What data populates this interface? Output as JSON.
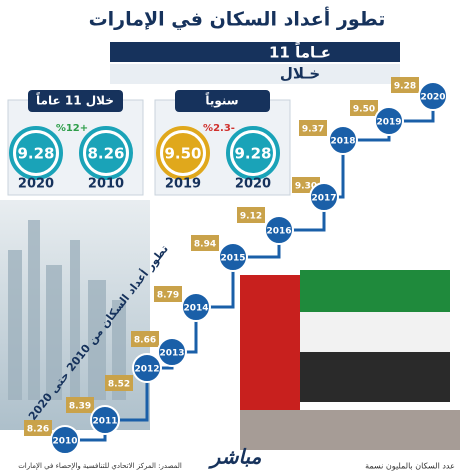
{
  "title": "تطور أعداد السكان في الإمارات",
  "subtitle": {
    "duration": "11 عـاماً",
    "prefix": "خـلال"
  },
  "comparisons": [
    {
      "heading": "خلال 11 عاماً",
      "change": "%12+",
      "items": [
        {
          "value": "9.28",
          "year": "2020"
        },
        {
          "value": "8.26",
          "year": "2010"
        }
      ]
    },
    {
      "heading": "سنوياً",
      "change": "%2.3-",
      "items": [
        {
          "value": "9.50",
          "year": "2019"
        },
        {
          "value": "9.28",
          "year": "2020"
        }
      ]
    }
  ],
  "timeline": {
    "label": "تطور أعداد السكان من 2010 حتى 2020",
    "points": [
      {
        "year": "2010",
        "value": "8.26"
      },
      {
        "year": "2011",
        "value": "8.39"
      },
      {
        "year": "2012",
        "value": "8.52"
      },
      {
        "year": "2013",
        "value": "8.66"
      },
      {
        "year": "2014",
        "value": "8.79"
      },
      {
        "year": "2015",
        "value": "8.94"
      },
      {
        "year": "2016",
        "value": "9.12"
      },
      {
        "year": "2017",
        "value": "9.30"
      },
      {
        "year": "2018",
        "value": "9.37"
      },
      {
        "year": "2019",
        "value": "9.50"
      },
      {
        "year": "2020",
        "value": "9.28"
      }
    ]
  },
  "footer": {
    "unit": "عدد السكان بالمليون نسمة",
    "source": "المصدر: المركز الاتحادي للتنافسية والإحصاء في الإمارات",
    "logo": "مباشر"
  }
}
